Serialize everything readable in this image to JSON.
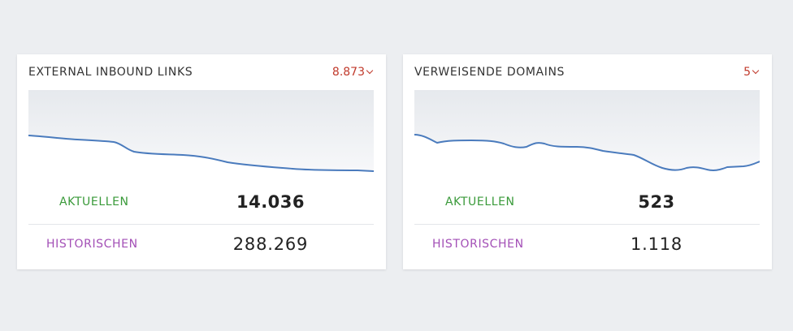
{
  "cards": [
    {
      "title": "EXTERNAL INBOUND LINKS",
      "delta": "8.873",
      "current_label": "AKTUELLEN",
      "current_value": "14.036",
      "historical_label": "HISTORISCHEN",
      "historical_value": "288.269"
    },
    {
      "title": "VERWEISENDE DOMAINS",
      "delta": "5",
      "current_label": "AKTUELLEN",
      "current_value": "523",
      "historical_label": "HISTORISCHEN",
      "historical_value": "1.118"
    }
  ],
  "colors": {
    "line": "#4a7bbd",
    "delta": "#c0392b",
    "current_label": "#3a9a3a",
    "historical_label": "#a34fb6"
  },
  "icons": {
    "delta_indicator": "chevron-down-icon"
  }
}
